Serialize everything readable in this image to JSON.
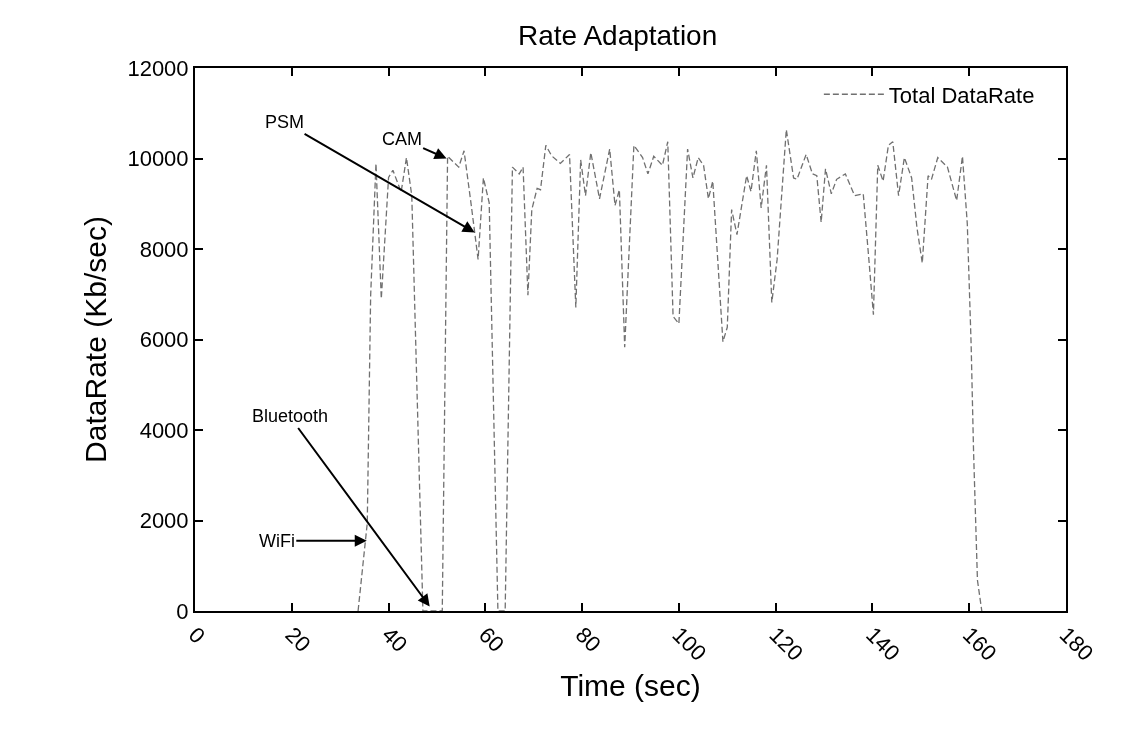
{
  "chart_data": {
    "type": "line",
    "title": "Rate Adaptation",
    "xlabel": "Time (sec)",
    "ylabel": "DataRate (Kb/sec)",
    "xlim": [
      0,
      180
    ],
    "xticks": [
      0,
      20,
      40,
      60,
      80,
      100,
      120,
      140,
      160,
      180
    ],
    "ylim": [
      0,
      12000
    ],
    "yticks": [
      0,
      2000,
      4000,
      6000,
      8000,
      10000,
      12000
    ],
    "legend": "top right",
    "marker": "none",
    "line_style": "dashed",
    "annotations": [
      {
        "text": "PSM",
        "x": 57.8,
        "y": 8365
      },
      {
        "text": "CAM",
        "x": 52,
        "y": 10000
      },
      {
        "text": "Bluetooth",
        "x": 48.5,
        "y": 100
      },
      {
        "text": "WiFi",
        "x": 35.5,
        "y": 1550
      }
    ],
    "series": [
      {
        "name": "Total DataRate",
        "color": "#707070",
        "x": [
          33.7,
          35.6,
          36.3,
          37.4,
          38.5,
          40.0,
          40.9,
          42.6,
          43.7,
          44.8,
          47.1,
          51.1,
          52.2,
          54.5,
          55.6,
          57.1,
          58.5,
          59.6,
          60.8,
          62.6,
          64.1,
          65.6,
          67.0,
          67.8,
          68.8,
          69.6,
          70.7,
          71.4,
          72.5,
          73.7,
          75.5,
          77.4,
          78.7,
          79.7,
          80.7,
          81.8,
          83.6,
          85.7,
          86.8,
          87.7,
          88.8,
          90.7,
          92.5,
          93.6,
          94.8,
          96.6,
          97.7,
          98.8,
          100.0,
          101.8,
          102.9,
          104.0,
          105.1,
          106.1,
          107.0,
          109.1,
          110.0,
          110.9,
          112.0,
          114.0,
          114.9,
          116.0,
          117.0,
          118.1,
          119.2,
          120.3,
          122.2,
          123.7,
          124.4,
          126.3,
          127.6,
          128.5,
          129.4,
          130.3,
          131.5,
          132.6,
          134.4,
          136.3,
          138.1,
          139.2,
          140.2,
          141.1,
          142.2,
          143.3,
          144.2,
          145.4,
          146.6,
          148.1,
          149.2,
          150.3,
          151.5,
          152.2,
          153.5,
          155.5,
          157.4,
          158.6,
          159.6,
          160.4,
          160.9,
          161.7,
          162.6
        ],
        "values": [
          0,
          1940,
          6970,
          9890,
          6900,
          9580,
          9740,
          9260,
          10020,
          9180,
          0,
          0,
          10050,
          9810,
          10170,
          8960,
          7770,
          9570,
          9020,
          0,
          0,
          9810,
          9660,
          9810,
          6980,
          8870,
          9340,
          9310,
          10290,
          10060,
          9890,
          10090,
          6710,
          9970,
          9180,
          10130,
          9110,
          10210,
          8960,
          9310,
          5830,
          10290,
          10020,
          9660,
          10050,
          9850,
          10370,
          6510,
          6350,
          10210,
          9570,
          10020,
          9850,
          9110,
          9500,
          5950,
          6270,
          8870,
          8320,
          9620,
          9270,
          10170,
          8910,
          9850,
          6820,
          7770,
          10640,
          9570,
          9540,
          10090,
          9660,
          9620,
          8590,
          9770,
          9220,
          9540,
          9660,
          9180,
          9220,
          7850,
          6550,
          9850,
          9500,
          10290,
          10370,
          9180,
          10020,
          9570,
          8470,
          7690,
          9620,
          9540,
          10020,
          9810,
          9070,
          10050,
          8560,
          5870,
          3510,
          680,
          0
        ]
      }
    ]
  }
}
